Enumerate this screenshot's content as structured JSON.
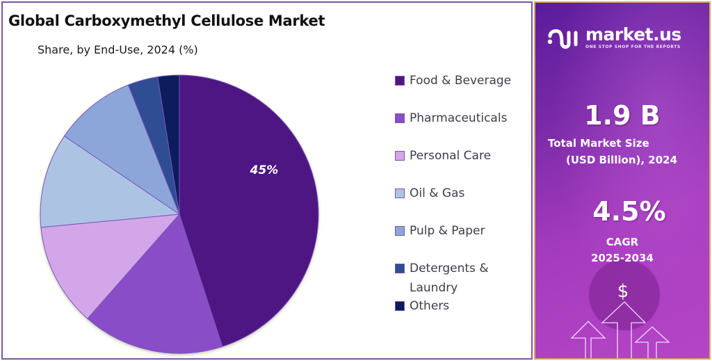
{
  "header": {
    "title": "Global Carboxymethyl Cellulose Market",
    "subtitle": "Share, by End-Use, 2024 (%)"
  },
  "chart_data": {
    "type": "pie",
    "title": "Global Carboxymethyl Cellulose Market",
    "subtitle": "Share, by End-Use, 2024 (%)",
    "categories": [
      "Food & Beverage",
      "Pharmaceuticals",
      "Personal Care",
      "Oil & Gas",
      "Pulp & Paper",
      "Detergents & Laundry",
      "Others"
    ],
    "values": [
      45,
      16.5,
      12,
      11,
      9.5,
      3.5,
      2.5
    ],
    "colors": [
      "#4d1782",
      "#8a4ec8",
      "#d3a6ea",
      "#adc3e4",
      "#8da6da",
      "#2e4d92",
      "#0d1b5c"
    ],
    "data_labels": [
      {
        "category": "Food & Beverage",
        "label": "45%"
      }
    ],
    "start_angle_deg": 0,
    "direction": "clockwise",
    "legend_position": "right"
  },
  "legend": {
    "items": [
      {
        "label": "Food & Beverage",
        "color": "#4d1782"
      },
      {
        "label": "Pharmaceuticals",
        "color": "#8a4ec8"
      },
      {
        "label": "Personal Care",
        "color": "#d3a6ea"
      },
      {
        "label": "Oil & Gas",
        "color": "#adc3e4"
      },
      {
        "label": "Pulp & Paper",
        "color": "#8da6da"
      },
      {
        "label": "Detergents & Laundry",
        "color": "#2e4d92"
      },
      {
        "label": "Others",
        "color": "#0d1b5c"
      }
    ]
  },
  "pie_label": "45%",
  "sidebar": {
    "logo_name": "market.us",
    "logo_tagline": "ONE STOP SHOP FOR THE REPORTS",
    "market_size_value": "1.9 B",
    "market_size_label_line1": "Total Market Size",
    "market_size_label_line2": "(USD Billion), 2024",
    "cagr_value": "4.5%",
    "cagr_label": "CAGR",
    "cagr_period": "2025-2034",
    "dollar_symbol": "$"
  }
}
